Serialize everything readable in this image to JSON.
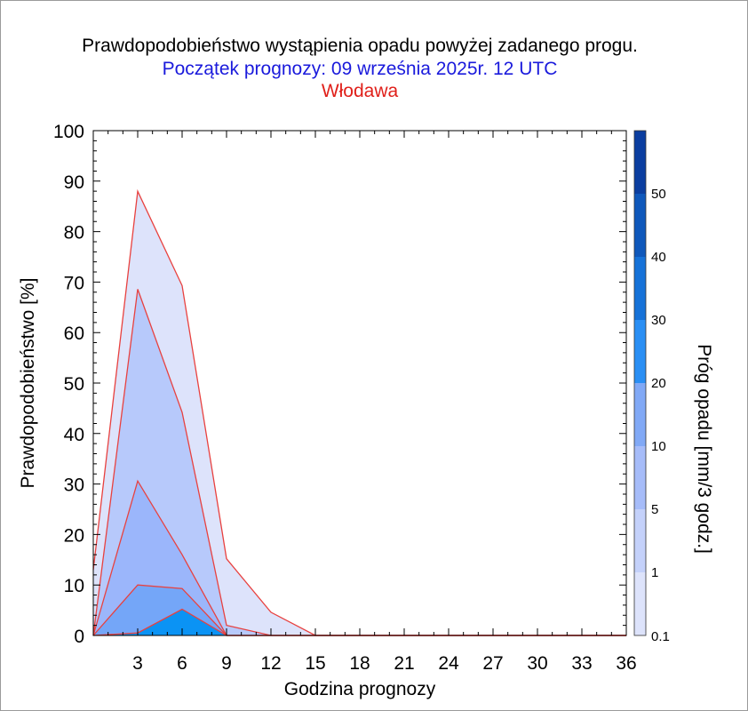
{
  "title": "Prawdopodobieństwo wystąpienia opadu powyżej zadanego progu.",
  "subtitle": "Początek prognozy: 09 września 2025r. 12 UTC",
  "location": "Włodawa",
  "chart_data": {
    "type": "area",
    "title": "Prawdopodobieństwo wystąpienia opadu powyżej zadanego progu.",
    "subtitle": "Początek prognozy: 09 września 2025r. 12 UTC",
    "location": "Włodawa",
    "xlabel": "Godzina prognozy",
    "ylabel": "Prawdopodobieństwo [%]",
    "xlim": [
      0,
      36
    ],
    "ylim": [
      0,
      100
    ],
    "xticks": [
      3,
      6,
      9,
      12,
      15,
      18,
      21,
      24,
      27,
      30,
      33,
      36
    ],
    "yticks": [
      0,
      10,
      20,
      30,
      40,
      50,
      60,
      70,
      80,
      90,
      100
    ],
    "x": [
      0,
      3,
      6,
      9,
      12,
      15,
      18,
      21,
      24,
      27,
      30,
      33,
      36
    ],
    "series": [
      {
        "threshold": 0.1,
        "color": "#dde3fb",
        "values": [
          13,
          88,
          69.3,
          15.2,
          4.6,
          0,
          0,
          0,
          0,
          0,
          0,
          0,
          0
        ]
      },
      {
        "threshold": 1,
        "color": "#b7c9fb",
        "values": [
          0,
          68.6,
          44.2,
          2,
          0,
          0,
          0,
          0,
          0,
          0,
          0,
          0,
          0
        ]
      },
      {
        "threshold": 5,
        "color": "#9bb6fb",
        "values": [
          0,
          30.6,
          16,
          0,
          0,
          0,
          0,
          0,
          0,
          0,
          0,
          0,
          0
        ]
      },
      {
        "threshold": 10,
        "color": "#74a6f8",
        "values": [
          0,
          10,
          9.3,
          0,
          0,
          0,
          0,
          0,
          0,
          0,
          0,
          0,
          0
        ]
      },
      {
        "threshold": 20,
        "color": "#0b93f4",
        "values": [
          0,
          0.5,
          5.2,
          0,
          0,
          0,
          0,
          0,
          0,
          0,
          0,
          0,
          0
        ]
      }
    ],
    "colorbar": {
      "label": "Próg opadu [mm/3 godz.]",
      "ticks": [
        "0.1",
        "1",
        "5",
        "10",
        "20",
        "30",
        "40",
        "50"
      ],
      "colors": [
        "#dde3fb",
        "#c4d1fa",
        "#a6bcf9",
        "#81a9f6",
        "#2a8ff4",
        "#1672d8",
        "#0f58bb",
        "#0b3ea0"
      ]
    },
    "line_color": "#e8413f",
    "grid": false
  }
}
